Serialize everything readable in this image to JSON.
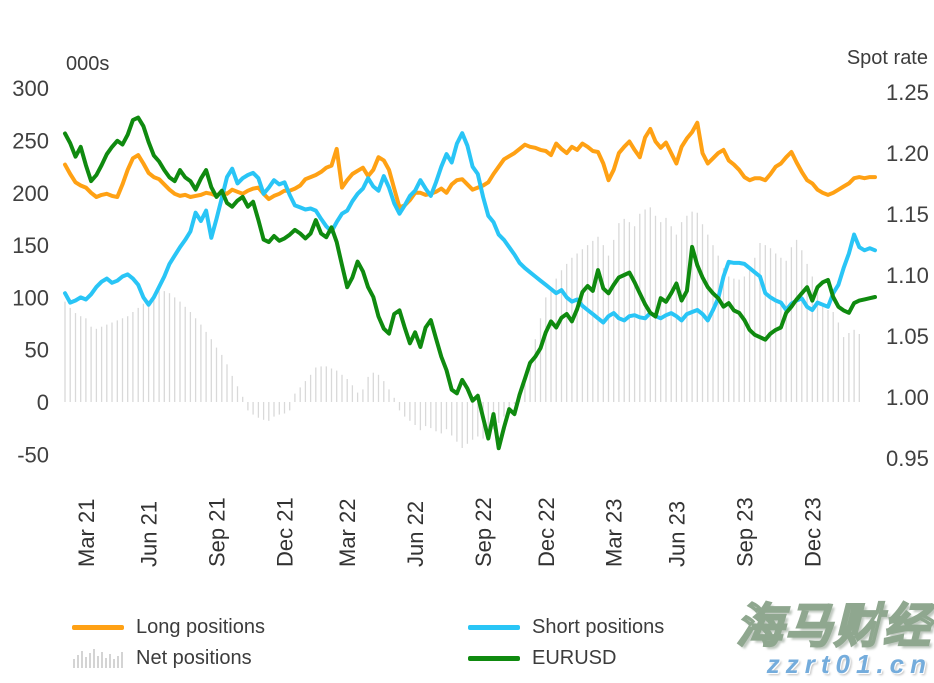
{
  "watermark": {
    "line1": "海马财经",
    "line2": "zzrt01.cn",
    "url_color": "#74acdc"
  },
  "legend": {
    "items": [
      {
        "label": "Long positions",
        "swatch": "line",
        "color": "#ffa114"
      },
      {
        "label": "Short positions",
        "swatch": "line",
        "color": "#29c5f6"
      },
      {
        "label": "Net positions",
        "swatch": "bars",
        "color": "#c9c9c9"
      },
      {
        "label": "EURUSD",
        "swatch": "line",
        "color": "#0f8a0f"
      }
    ]
  },
  "chart_data": {
    "type": "mixed-bar-line",
    "title": "",
    "left_axis": {
      "label": "000s",
      "ticks": [
        300,
        250,
        200,
        150,
        100,
        50,
        0,
        -50
      ],
      "units": "thousand contracts"
    },
    "right_axis": {
      "label": "Spot rate",
      "ticks": [
        "1.25",
        "1.20",
        "1.15",
        "1.10",
        "1.05",
        "1.00",
        "0.95"
      ]
    },
    "x_ticks": {
      "labels": [
        "Mar 21",
        "Jun 21",
        "Sep 21",
        "Dec 21",
        "Mar 22",
        "Jun 22",
        "Sep 22",
        "Dec 22",
        "Mar 23",
        "Jun 23",
        "Sep 23",
        "Dec 23"
      ],
      "indices": [
        4,
        16,
        29,
        42,
        54,
        67,
        80,
        92,
        105,
        117,
        130,
        143
      ]
    },
    "x_frequency": "weekly",
    "grid": false,
    "legend_position": "bottom",
    "series": [
      {
        "name": "Long positions",
        "type": "line",
        "axis": "left",
        "color": "#ffa114",
        "values": [
          227,
          218,
          210,
          207,
          205,
          200,
          196,
          198,
          199,
          197,
          196,
          208,
          222,
          233,
          236,
          228,
          219,
          215,
          213,
          208,
          203,
          199,
          197,
          198,
          196,
          197,
          198,
          200,
          199,
          197,
          201,
          199,
          203,
          201,
          199,
          202,
          204,
          205,
          199,
          194,
          197,
          199,
          202,
          202,
          204,
          207,
          213,
          215,
          217,
          220,
          224,
          226,
          242,
          205,
          212,
          218,
          221,
          224,
          216,
          222,
          234,
          231,
          222,
          204,
          186,
          188,
          193,
          200,
          200,
          198,
          199,
          201,
          204,
          200,
          208,
          212,
          213,
          208,
          203,
          205,
          207,
          210,
          218,
          225,
          232,
          235,
          238,
          242,
          246,
          244,
          243,
          241,
          240,
          236,
          247,
          242,
          238,
          244,
          241,
          247,
          244,
          240,
          239,
          228,
          212,
          222,
          238,
          244,
          249,
          241,
          234,
          253,
          261,
          249,
          243,
          248,
          238,
          228,
          244,
          252,
          258,
          267,
          238,
          228,
          233,
          238,
          241,
          231,
          227,
          222,
          215,
          212,
          214,
          214,
          212,
          218,
          225,
          228,
          234,
          239,
          229,
          220,
          212,
          209,
          203,
          200,
          198,
          200,
          203,
          206,
          209,
          214,
          215,
          214,
          215,
          215
        ]
      },
      {
        "name": "Short positions",
        "type": "line",
        "axis": "left",
        "color": "#29c5f6",
        "values": [
          104,
          95,
          97,
          100,
          98,
          103,
          110,
          115,
          118,
          114,
          116,
          120,
          122,
          118,
          112,
          100,
          93,
          100,
          110,
          120,
          132,
          140,
          148,
          155,
          163,
          181,
          173,
          183,
          157,
          175,
          195,
          215,
          223,
          209,
          214,
          217,
          219,
          214,
          199,
          205,
          212,
          208,
          210,
          198,
          188,
          186,
          184,
          185,
          183,
          175,
          168,
          163,
          172,
          180,
          183,
          192,
          199,
          204,
          214,
          206,
          202,
          216,
          205,
          190,
          180,
          188,
          197,
          202,
          212,
          204,
          197,
          210,
          225,
          237,
          229,
          247,
          257,
          245,
          225,
          218,
          196,
          178,
          172,
          160,
          155,
          148,
          141,
          133,
          128,
          124,
          120,
          116,
          112,
          108,
          104,
          107,
          100,
          96,
          98,
          92,
          88,
          84,
          80,
          76,
          82,
          85,
          80,
          78,
          82,
          83,
          81,
          80,
          85,
          82,
          80,
          83,
          85,
          82,
          78,
          84,
          86,
          88,
          84,
          78,
          88,
          99,
          120,
          134,
          133,
          133,
          132,
          128,
          124,
          120,
          104,
          100,
          97,
          95,
          88,
          94,
          97,
          99,
          91,
          88,
          95,
          93,
          91,
          104,
          112,
          128,
          142,
          160,
          148,
          145,
          147,
          145
        ]
      },
      {
        "name": "Net positions",
        "type": "bar",
        "axis": "left",
        "color": "#d9d9d9",
        "values": [
          96,
          90,
          85,
          82,
          80,
          72,
          70,
          72,
          74,
          76,
          78,
          80,
          82,
          86,
          90,
          94,
          97,
          102,
          108,
          106,
          104,
          100,
          96,
          91,
          86,
          80,
          74,
          67,
          60,
          52,
          45,
          36,
          25,
          15,
          5,
          -8,
          -12,
          -15,
          -17,
          -18,
          -14,
          -12,
          -11,
          -8,
          8,
          14,
          20,
          26,
          33,
          34,
          34,
          32,
          30,
          26,
          22,
          16,
          9,
          12,
          24,
          28,
          26,
          20,
          12,
          4,
          -8,
          -14,
          -18,
          -22,
          -27,
          -23,
          -25,
          -28,
          -30,
          -26,
          -32,
          -38,
          -44,
          -40,
          -36,
          -33,
          -35,
          -30,
          -26,
          -20,
          -14,
          -8,
          -2,
          10,
          25,
          40,
          60,
          80,
          100,
          108,
          118,
          126,
          132,
          138,
          142,
          146,
          150,
          154,
          158,
          150,
          140,
          155,
          171,
          175,
          172,
          168,
          180,
          184,
          186,
          178,
          172,
          176,
          168,
          160,
          172,
          178,
          182,
          181,
          170,
          160,
          150,
          140,
          128,
          120,
          118,
          117,
          120,
          126,
          138,
          152,
          150,
          147,
          142,
          138,
          135,
          148,
          155,
          145,
          132,
          120,
          112,
          95,
          88,
          86,
          76,
          62,
          66,
          69,
          65,
          null,
          null,
          null
        ]
      },
      {
        "name": "EURUSD",
        "type": "line",
        "axis": "right",
        "color": "#0f8a0f",
        "values": [
          1.216,
          1.208,
          1.197,
          1.205,
          1.19,
          1.177,
          1.182,
          1.19,
          1.199,
          1.205,
          1.21,
          1.207,
          1.215,
          1.227,
          1.229,
          1.222,
          1.209,
          1.198,
          1.193,
          1.186,
          1.18,
          1.177,
          1.186,
          1.18,
          1.177,
          1.17,
          1.179,
          1.186,
          1.172,
          1.164,
          1.169,
          1.159,
          1.156,
          1.161,
          1.164,
          1.156,
          1.16,
          1.145,
          1.129,
          1.127,
          1.132,
          1.128,
          1.13,
          1.133,
          1.137,
          1.134,
          1.13,
          1.134,
          1.145,
          1.134,
          1.131,
          1.139,
          1.127,
          1.108,
          1.09,
          1.098,
          1.111,
          1.103,
          1.09,
          1.082,
          1.066,
          1.056,
          1.052,
          1.068,
          1.071,
          1.057,
          1.044,
          1.053,
          1.041,
          1.057,
          1.063,
          1.048,
          1.033,
          1.022,
          1.006,
          1.003,
          1.014,
          1.007,
          0.997,
          1.001,
          0.983,
          0.966,
          0.986,
          0.958,
          0.975,
          0.99,
          0.986,
          1.002,
          1.015,
          1.028,
          1.033,
          1.04,
          1.053,
          1.062,
          1.057,
          1.065,
          1.068,
          1.062,
          1.072,
          1.086,
          1.091,
          1.087,
          1.104,
          1.089,
          1.085,
          1.092,
          1.098,
          1.1,
          1.102,
          1.094,
          1.085,
          1.076,
          1.069,
          1.066,
          1.081,
          1.078,
          1.085,
          1.093,
          1.079,
          1.087,
          1.123,
          1.108,
          1.098,
          1.09,
          1.085,
          1.081,
          1.074,
          1.077,
          1.071,
          1.069,
          1.063,
          1.055,
          1.051,
          1.049,
          1.047,
          1.052,
          1.055,
          1.057,
          1.069,
          1.074,
          1.08,
          1.085,
          1.09,
          1.079,
          1.09,
          1.094,
          1.096,
          1.082,
          1.074,
          1.071,
          1.069,
          1.077,
          1.079,
          1.08,
          1.081,
          1.082
        ]
      }
    ]
  }
}
